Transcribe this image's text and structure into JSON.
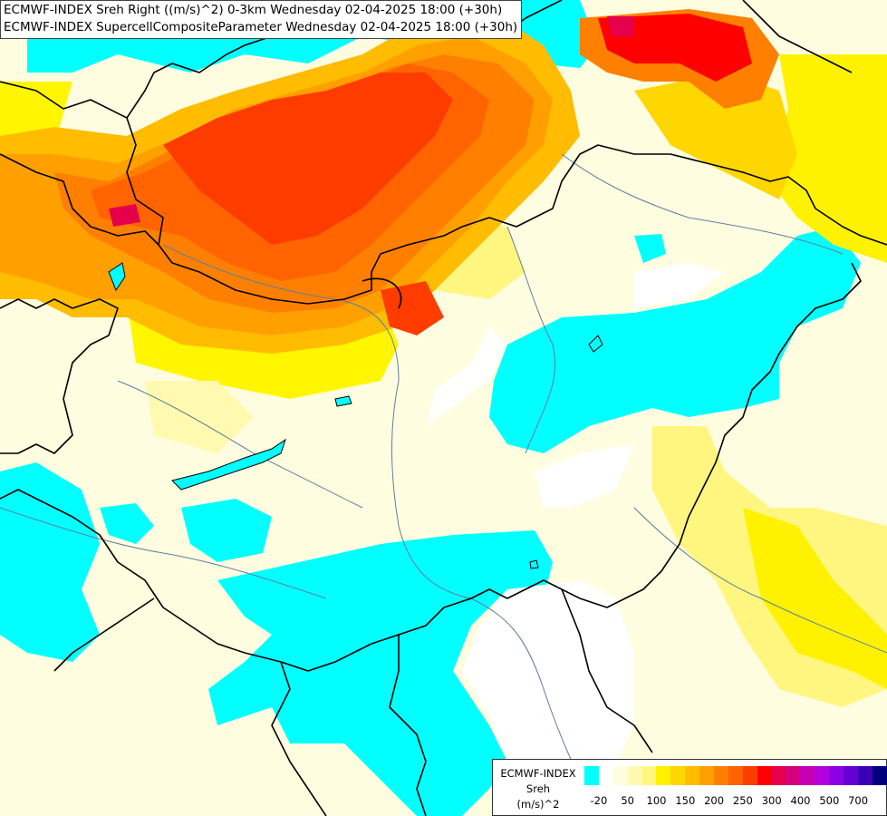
{
  "header": {
    "line1": "ECMWF-INDEX Sreh Right ((m/s)^2) 0-3km Wednesday 02-04-2025 18:00 (+30h)",
    "line2": "ECMWF-INDEX SupercellCompositeParameter Wednesday 02-04-2025 18:00 (+30h)"
  },
  "legend": {
    "source": "ECMWF-INDEX",
    "parameter": "Sreh",
    "unit": "(m/s)^2",
    "colors": [
      "#00ffff",
      "#ffffff",
      "#fffde0",
      "#fffab0",
      "#fff680",
      "#fff200",
      "#ffd700",
      "#ffbc00",
      "#ffa000",
      "#ff8000",
      "#ff6400",
      "#ff3c00",
      "#ff0000",
      "#e6004b",
      "#d2007d",
      "#c800b4",
      "#b400dc",
      "#8c00e6",
      "#6400d2",
      "#3c00b4",
      "#00007d"
    ],
    "tick_labels": [
      "-20",
      "50",
      "100",
      "150",
      "200",
      "250",
      "300",
      "400",
      "500",
      "700"
    ]
  }
}
